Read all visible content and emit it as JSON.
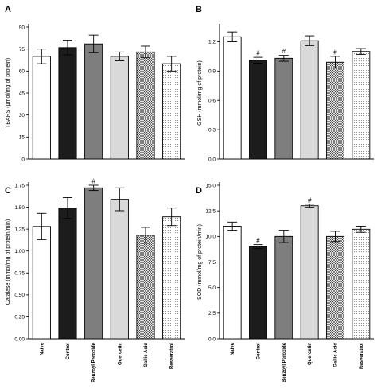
{
  "colors": {
    "Naive": "#ffffff",
    "Control": "#1c1c1c",
    "Benzoyl Peroxide": "#7e7e7e",
    "Quercetin": "#d9d9d9",
    "Gallic Acid": "crosshatch",
    "Resveratrol": "dots"
  },
  "chart_data": [
    {
      "type": "bar",
      "panel": "A",
      "categories": [
        "Naive",
        "Control",
        "Benzoyl Peroxide",
        "Quercetin",
        "Gallic Acid",
        "Resveratrol"
      ],
      "values": [
        70,
        76,
        78.5,
        70,
        73,
        65
      ],
      "errors": [
        5,
        5,
        6,
        3,
        4,
        5
      ],
      "significance": [
        "",
        "",
        "",
        "",
        "",
        ""
      ],
      "ylabel": "TBARS (μmol/mg of protein)",
      "ylim": [
        0,
        90
      ],
      "yticks": [
        0,
        15,
        30,
        45,
        60,
        75,
        90
      ],
      "ytick_labels": [
        "0",
        "15",
        "30",
        "45",
        "60",
        "75",
        "90"
      ],
      "show_xlabels": false
    },
    {
      "type": "bar",
      "panel": "B",
      "categories": [
        "Naive",
        "Control",
        "Benzoyl Peroxide",
        "Quercetin",
        "Gallic Acid",
        "Resveratrol"
      ],
      "values": [
        1.25,
        1.01,
        1.03,
        1.21,
        0.99,
        1.1
      ],
      "errors": [
        0.05,
        0.03,
        0.03,
        0.05,
        0.06,
        0.03
      ],
      "significance": [
        "",
        "#",
        "#",
        "",
        "#",
        ""
      ],
      "ylabel": "GSH (mmol/mg of protein)",
      "ylim": [
        0,
        1.35
      ],
      "yticks": [
        0,
        0.3,
        0.6,
        0.9,
        1.2
      ],
      "ytick_labels": [
        "0.0",
        "0.3",
        "0.6",
        "0.9",
        "1.2"
      ],
      "show_xlabels": false
    },
    {
      "type": "bar",
      "panel": "C",
      "categories": [
        "Naive",
        "Control",
        "Benzoyl Peroxide",
        "Quercetin",
        "Gallic Acid",
        "Resveratrol"
      ],
      "values": [
        1.28,
        1.49,
        1.72,
        1.59,
        1.18,
        1.39
      ],
      "errors": [
        0.15,
        0.12,
        0.03,
        0.13,
        0.09,
        0.1
      ],
      "significance": [
        "",
        "",
        "#",
        "",
        "",
        ""
      ],
      "ylabel": "Catalase (mmol/mg of protein/min)",
      "ylim": [
        0,
        1.75
      ],
      "yticks": [
        0,
        0.25,
        0.5,
        0.75,
        1,
        1.25,
        1.5,
        1.75
      ],
      "ytick_labels": [
        "0.00",
        "0.25",
        "0.50",
        "0.75",
        "1.00",
        "1.25",
        "1.50",
        "1.75"
      ],
      "show_xlabels": true
    },
    {
      "type": "bar",
      "panel": "D",
      "categories": [
        "Naive",
        "Control",
        "Benzoyl Peroxide",
        "Quercetin",
        "Gallic Acid",
        "Resveratrol"
      ],
      "values": [
        11,
        9,
        10,
        13,
        10,
        10.7
      ],
      "errors": [
        0.4,
        0.2,
        0.6,
        0.15,
        0.5,
        0.3
      ],
      "significance": [
        "",
        "#",
        "",
        "#",
        "",
        ""
      ],
      "ylabel": "SOD (mmol/mg of protein/min)",
      "ylim": [
        0,
        15
      ],
      "yticks": [
        0,
        2.5,
        5,
        7.5,
        10,
        12.5,
        15
      ],
      "ytick_labels": [
        "0.0",
        "2.5",
        "5.0",
        "7.5",
        "10.0",
        "12.5",
        "15.0"
      ],
      "show_xlabels": true
    }
  ]
}
